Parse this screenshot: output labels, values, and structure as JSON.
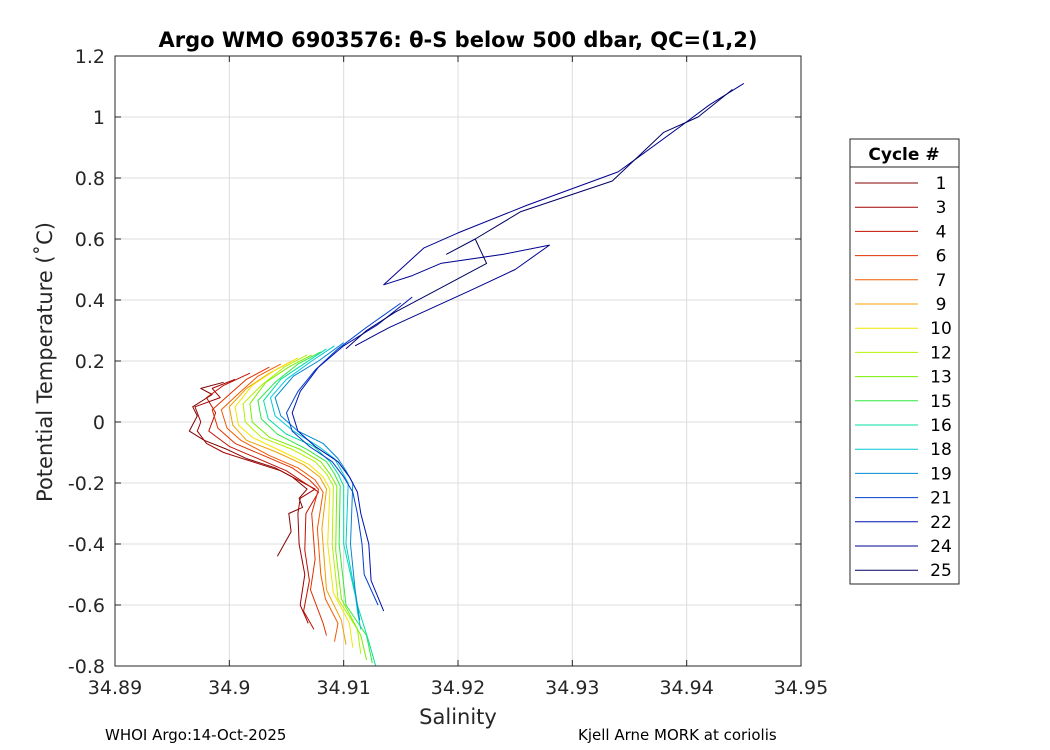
{
  "chart_data": {
    "type": "line",
    "title": "Argo WMO 6903576: θ-S below 500 dbar,  QC=(1,2)",
    "xlabel": "Salinity",
    "ylabel": "Potential Temperature (˚C)",
    "xlim": [
      34.89,
      34.95
    ],
    "ylim": [
      -0.8,
      1.2
    ],
    "xticks": [
      "34.89",
      "34.9",
      "34.91",
      "34.92",
      "34.93",
      "34.94",
      "34.95"
    ],
    "yticks": [
      "1.2",
      "1",
      "0.8",
      "0.6",
      "0.4",
      "0.2",
      "0",
      "-0.2",
      "-0.4",
      "-0.6",
      "-0.8"
    ],
    "grid": true,
    "legend_title": "Cycle #",
    "legend_position": "right-outside",
    "footer_left": "WHOI Argo:14-Oct-2025",
    "footer_right": "Kjell Arne MORK at coriolis",
    "series": [
      {
        "name": "1",
        "color": "#800000",
        "x": [
          34.8995,
          34.8975,
          34.8985,
          34.8968,
          34.8972,
          34.8965,
          34.8978,
          34.8998,
          34.9015,
          34.904,
          34.9055,
          34.9068,
          34.9061,
          34.9064,
          34.9052,
          34.9054,
          34.9042
        ],
        "y": [
          0.13,
          0.11,
          0.09,
          0.05,
          0.02,
          -0.03,
          -0.06,
          -0.09,
          -0.12,
          -0.15,
          -0.18,
          -0.22,
          -0.25,
          -0.28,
          -0.3,
          -0.36,
          -0.44
        ]
      },
      {
        "name": "3",
        "color": "#a00000",
        "x": [
          34.9005,
          34.8985,
          34.8992,
          34.897,
          34.8975,
          34.8972,
          34.898,
          34.8995,
          34.902,
          34.9045,
          34.906,
          34.9075,
          34.9062,
          34.906,
          34.9061,
          34.9066,
          34.9062,
          34.9069
        ],
        "y": [
          0.14,
          0.11,
          0.08,
          0.05,
          0.0,
          -0.03,
          -0.07,
          -0.1,
          -0.13,
          -0.16,
          -0.19,
          -0.22,
          -0.25,
          -0.3,
          -0.4,
          -0.5,
          -0.6,
          -0.66
        ]
      },
      {
        "name": "4",
        "color": "#c01000",
        "x": [
          34.9018,
          34.8995,
          34.898,
          34.8988,
          34.8982,
          34.9,
          34.9025,
          34.905,
          34.9066,
          34.9078,
          34.9067,
          34.9066,
          34.907,
          34.9065,
          34.9074
        ],
        "y": [
          0.16,
          0.12,
          0.08,
          0.03,
          -0.03,
          -0.08,
          -0.12,
          -0.16,
          -0.2,
          -0.23,
          -0.3,
          -0.42,
          -0.52,
          -0.62,
          -0.68
        ]
      },
      {
        "name": "6",
        "color": "#e03000",
        "x": [
          34.9035,
          34.9015,
          34.9,
          34.8985,
          34.899,
          34.9005,
          34.903,
          34.9055,
          34.907,
          34.9078,
          34.9072,
          34.9075,
          34.9071,
          34.9082,
          34.9085
        ],
        "y": [
          0.18,
          0.14,
          0.09,
          0.04,
          -0.02,
          -0.07,
          -0.11,
          -0.15,
          -0.19,
          -0.22,
          -0.3,
          -0.45,
          -0.55,
          -0.66,
          -0.7
        ]
      },
      {
        "name": "7",
        "color": "#f05a00",
        "x": [
          34.9045,
          34.9025,
          34.901,
          34.8993,
          34.8998,
          34.901,
          34.9035,
          34.906,
          34.9075,
          34.9082,
          34.9077,
          34.908,
          34.9084,
          34.9095,
          34.9092
        ],
        "y": [
          0.19,
          0.15,
          0.1,
          0.04,
          -0.02,
          -0.06,
          -0.11,
          -0.15,
          -0.19,
          -0.23,
          -0.35,
          -0.5,
          -0.58,
          -0.66,
          -0.72
        ]
      },
      {
        "name": "9",
        "color": "#f0a000",
        "x": [
          34.9055,
          34.9035,
          34.9015,
          34.9,
          34.9003,
          34.9015,
          34.9042,
          34.9065,
          34.9079,
          34.9085,
          34.9081,
          34.9085,
          34.9098,
          34.9102
        ],
        "y": [
          0.2,
          0.16,
          0.11,
          0.05,
          -0.01,
          -0.06,
          -0.1,
          -0.14,
          -0.18,
          -0.22,
          -0.35,
          -0.55,
          -0.65,
          -0.73
        ]
      },
      {
        "name": "10",
        "color": "#f2e600",
        "x": [
          34.906,
          34.904,
          34.902,
          34.9005,
          34.9008,
          34.902,
          34.9048,
          34.907,
          34.9082,
          34.9088,
          34.9086,
          34.9091,
          34.9105,
          34.9108
        ],
        "y": [
          0.21,
          0.17,
          0.12,
          0.05,
          -0.01,
          -0.05,
          -0.1,
          -0.14,
          -0.18,
          -0.22,
          -0.4,
          -0.56,
          -0.66,
          -0.74
        ]
      },
      {
        "name": "12",
        "color": "#b4f000",
        "x": [
          34.9068,
          34.9048,
          34.9028,
          34.9012,
          34.9014,
          34.9028,
          34.9055,
          34.9075,
          34.9085,
          34.9091,
          34.909,
          34.9095,
          34.9112,
          34.9115
        ],
        "y": [
          0.22,
          0.18,
          0.12,
          0.06,
          0.0,
          -0.05,
          -0.09,
          -0.13,
          -0.17,
          -0.21,
          -0.4,
          -0.58,
          -0.68,
          -0.76
        ]
      },
      {
        "name": "13",
        "color": "#78f000",
        "x": [
          34.9072,
          34.9052,
          34.9032,
          34.9018,
          34.902,
          34.9035,
          34.9062,
          34.908,
          34.9088,
          34.9094,
          34.9093,
          34.9098,
          34.9115,
          34.912
        ],
        "y": [
          0.22,
          0.18,
          0.13,
          0.06,
          0.0,
          -0.05,
          -0.09,
          -0.13,
          -0.17,
          -0.21,
          -0.42,
          -0.58,
          -0.7,
          -0.78
        ]
      },
      {
        "name": "15",
        "color": "#30e840",
        "x": [
          34.908,
          34.906,
          34.904,
          34.9025,
          34.9028,
          34.9042,
          34.9068,
          34.9085,
          34.9092,
          34.9097,
          34.9096,
          34.9102,
          34.912,
          34.9125
        ],
        "y": [
          0.23,
          0.19,
          0.13,
          0.07,
          0.01,
          -0.04,
          -0.09,
          -0.13,
          -0.17,
          -0.21,
          -0.4,
          -0.6,
          -0.7,
          -0.79
        ]
      },
      {
        "name": "16",
        "color": "#00e0a0",
        "x": [
          34.9085,
          34.9065,
          34.9045,
          34.903,
          34.9034,
          34.905,
          34.9074,
          34.9088,
          34.9095,
          34.91,
          34.91,
          34.9112,
          34.9122,
          34.9128
        ],
        "y": [
          0.24,
          0.19,
          0.14,
          0.07,
          0.01,
          -0.04,
          -0.08,
          -0.13,
          -0.17,
          -0.21,
          -0.4,
          -0.6,
          -0.72,
          -0.8
        ]
      },
      {
        "name": "18",
        "color": "#00c8d8",
        "x": [
          34.9092,
          34.9072,
          34.905,
          34.9036,
          34.904,
          34.9056,
          34.9078,
          34.9092,
          34.9098,
          34.9104,
          34.9102,
          34.911,
          34.9112,
          34.9115
        ],
        "y": [
          0.25,
          0.2,
          0.14,
          0.08,
          0.02,
          -0.03,
          -0.08,
          -0.12,
          -0.16,
          -0.2,
          -0.4,
          -0.56,
          -0.62,
          -0.68
        ]
      },
      {
        "name": "19",
        "color": "#0088d0",
        "x": [
          34.91,
          34.9078,
          34.9056,
          34.904,
          34.9045,
          34.906,
          34.9082,
          34.9095,
          34.9102,
          34.9108,
          34.9106,
          34.911,
          34.9114
        ],
        "y": [
          0.26,
          0.2,
          0.15,
          0.08,
          0.02,
          -0.03,
          -0.07,
          -0.12,
          -0.16,
          -0.2,
          -0.4,
          -0.55,
          -0.65
        ]
      },
      {
        "name": "21",
        "color": "#0040d0",
        "x": [
          34.915,
          34.912,
          34.9095,
          34.9075,
          34.906,
          34.905,
          34.9055,
          34.907,
          34.909,
          34.91,
          34.9108,
          34.9112,
          34.9116,
          34.9118,
          34.913
        ],
        "y": [
          0.39,
          0.31,
          0.24,
          0.17,
          0.1,
          0.03,
          -0.03,
          -0.08,
          -0.13,
          -0.18,
          -0.23,
          -0.3,
          -0.4,
          -0.5,
          -0.6
        ]
      },
      {
        "name": "22",
        "color": "#0010b0",
        "x": [
          34.916,
          34.913,
          34.91,
          34.9078,
          34.9062,
          34.9055,
          34.906,
          34.9075,
          34.9095,
          34.9105,
          34.9112,
          34.9115,
          34.9122,
          34.9124,
          34.9135
        ],
        "y": [
          0.41,
          0.32,
          0.25,
          0.18,
          0.1,
          0.03,
          -0.03,
          -0.08,
          -0.13,
          -0.18,
          -0.23,
          -0.3,
          -0.4,
          -0.52,
          -0.62
        ]
      },
      {
        "name": "24",
        "color": "#000090",
        "x": [
          34.945,
          34.942,
          34.9395,
          34.934,
          34.926,
          34.92,
          34.917,
          34.9135,
          34.916,
          34.9185,
          34.924,
          34.928,
          34.925,
          34.921,
          34.9175,
          34.914,
          34.911
        ],
        "y": [
          1.11,
          1.04,
          0.97,
          0.82,
          0.71,
          0.62,
          0.57,
          0.45,
          0.48,
          0.52,
          0.55,
          0.58,
          0.5,
          0.43,
          0.37,
          0.31,
          0.25
        ]
      },
      {
        "name": "25",
        "color": "#000066",
        "x": [
          34.944,
          34.941,
          34.938,
          34.9335,
          34.9255,
          34.9215,
          34.919,
          34.9215,
          34.9225,
          34.918,
          34.9145,
          34.912,
          34.9102
        ],
        "y": [
          1.09,
          1.0,
          0.95,
          0.79,
          0.69,
          0.6,
          0.55,
          0.6,
          0.52,
          0.43,
          0.36,
          0.3,
          0.24
        ]
      }
    ]
  }
}
